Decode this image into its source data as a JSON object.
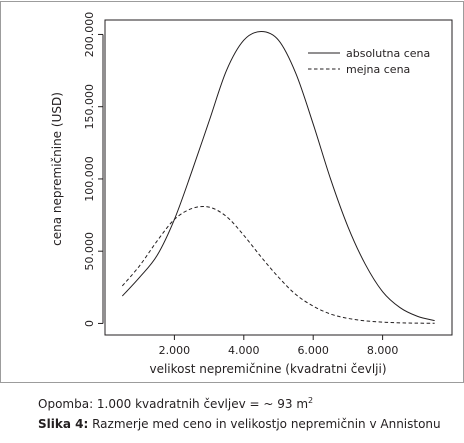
{
  "chart_data": {
    "type": "line",
    "xlabel": "velikost nepremičnine (kvadratni čevlji)",
    "ylabel": "cena nepremičnine (USD)",
    "xlim": [
      0,
      10000
    ],
    "ylim": [
      -8000,
      210000
    ],
    "x_ticks": [
      2000,
      4000,
      6000,
      8000
    ],
    "x_tick_labels": [
      "2.000",
      "4.000",
      "6.000",
      "8.000"
    ],
    "y_ticks": [
      0,
      50000,
      100000,
      150000,
      200000
    ],
    "y_tick_labels": [
      "0",
      "50.000",
      "100.000",
      "150.000",
      "200.000"
    ],
    "legend_position": "top-right",
    "grid": false,
    "series": [
      {
        "name": "absolutna cena",
        "line_style": "solid",
        "x": [
          500,
          1000,
          1500,
          2000,
          2500,
          3000,
          3500,
          4000,
          4500,
          5000,
          5500,
          6000,
          6500,
          7000,
          7500,
          8000,
          8500,
          9000,
          9500
        ],
        "values": [
          19000,
          32000,
          47000,
          72000,
          105000,
          140000,
          175000,
          196000,
          202000,
          196000,
          173000,
          138000,
          100000,
          67000,
          41000,
          22000,
          11000,
          5000,
          2000
        ]
      },
      {
        "name": "mejna cena",
        "line_style": "dashed",
        "x": [
          500,
          1000,
          1500,
          2000,
          2500,
          3000,
          3500,
          4000,
          4500,
          5000,
          5500,
          6000,
          6500,
          7000,
          7500,
          8000,
          8500,
          9000,
          9500
        ],
        "values": [
          26000,
          40000,
          57000,
          72000,
          79500,
          80500,
          74000,
          61000,
          46000,
          32000,
          20000,
          12000,
          6500,
          3500,
          1800,
          900,
          400,
          200,
          100
        ]
      }
    ]
  },
  "footnote": {
    "text": "Opomba: 1.000 kvadratnih čevljev = ~ 93 m",
    "superscript": "2"
  },
  "caption": {
    "label": "Slika 4:",
    "text": " Razmerje med ceno in velikostjo nepremičnin v Annistonu"
  }
}
